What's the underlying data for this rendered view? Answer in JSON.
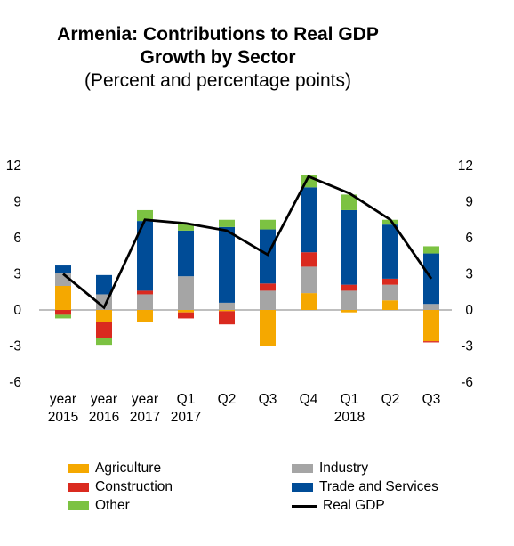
{
  "title": "Armenia: Contributions to Real GDP",
  "title_line2": "Growth by Sector",
  "subtitle": "(Percent and percentage points)",
  "colors": {
    "agriculture": "#F5A800",
    "industry": "#A5A5A5",
    "construction": "#DA2A1F",
    "trade": "#004C97",
    "other": "#7CC242",
    "real_gdp": "#000000"
  },
  "chart_data": {
    "type": "bar",
    "stacked": true,
    "categories": [
      [
        "year",
        "2015"
      ],
      [
        "year",
        "2016"
      ],
      [
        "year",
        "2017"
      ],
      [
        "Q1",
        "2017"
      ],
      [
        "Q2",
        ""
      ],
      [
        "Q3",
        ""
      ],
      [
        "Q4",
        ""
      ],
      [
        "Q1",
        "2018"
      ],
      [
        "Q2",
        ""
      ],
      [
        "Q3",
        ""
      ]
    ],
    "ylim": [
      -6,
      12
    ],
    "yticks": [
      12,
      9,
      6,
      3,
      0,
      -3,
      -6
    ],
    "grid": false,
    "series": [
      {
        "name": "Agriculture",
        "key": "agriculture",
        "values": [
          2.0,
          -1.0,
          -1.0,
          -0.2,
          -0.1,
          -3.0,
          1.4,
          -0.2,
          0.8,
          -2.6
        ]
      },
      {
        "name": "Industry",
        "key": "industry",
        "values": [
          1.1,
          1.3,
          1.3,
          2.8,
          0.6,
          1.6,
          2.2,
          1.6,
          1.3,
          0.5
        ]
      },
      {
        "name": "Construction",
        "key": "construction",
        "values": [
          -0.4,
          -1.3,
          0.3,
          -0.5,
          -1.1,
          0.6,
          1.2,
          0.5,
          0.5,
          -0.1
        ]
      },
      {
        "name": "Trade and Services",
        "key": "trade",
        "values": [
          0.6,
          1.6,
          5.8,
          3.8,
          6.3,
          4.5,
          5.4,
          6.2,
          4.5,
          4.2
        ]
      },
      {
        "name": "Other",
        "key": "other",
        "values": [
          -0.3,
          -0.6,
          0.9,
          0.6,
          0.6,
          0.8,
          1.0,
          1.3,
          0.4,
          0.6
        ]
      }
    ],
    "line": {
      "name": "Real GDP",
      "key": "real_gdp",
      "values": [
        3.0,
        0.2,
        7.5,
        7.2,
        6.6,
        4.6,
        11.1,
        9.7,
        7.5,
        2.6
      ]
    },
    "legend_position": "bottom"
  }
}
